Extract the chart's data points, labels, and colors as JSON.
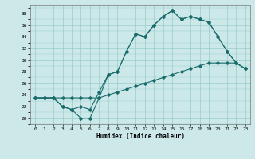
{
  "xlabel": "Humidex (Indice chaleur)",
  "background_color": "#cce8e8",
  "grid_color": "#99cccc",
  "line_color": "#1a6b6b",
  "xlim": [
    -0.5,
    23.5
  ],
  "ylim": [
    19.0,
    39.5
  ],
  "yticks": [
    20,
    22,
    24,
    26,
    28,
    30,
    32,
    34,
    36,
    38
  ],
  "xticks": [
    0,
    1,
    2,
    3,
    4,
    5,
    6,
    7,
    8,
    9,
    10,
    11,
    12,
    13,
    14,
    15,
    16,
    17,
    18,
    19,
    20,
    21,
    22,
    23
  ],
  "line1_x": [
    0,
    1,
    2,
    3,
    4,
    5,
    6,
    7,
    8,
    9,
    10,
    11,
    12,
    13,
    14,
    15,
    16,
    17,
    18,
    19,
    20,
    21,
    22,
    23
  ],
  "line1_y": [
    23.5,
    23.5,
    23.5,
    23.5,
    23.5,
    23.5,
    23.5,
    23.5,
    24.0,
    24.5,
    25.0,
    25.5,
    26.0,
    26.5,
    27.0,
    27.5,
    28.0,
    28.5,
    29.0,
    29.5,
    29.5,
    29.5,
    29.5,
    28.5
  ],
  "line2_x": [
    0,
    1,
    2,
    3,
    4,
    5,
    6,
    7,
    8,
    9,
    10,
    11,
    12,
    13,
    14,
    15,
    16,
    17,
    18,
    19,
    20,
    21,
    22,
    23
  ],
  "line2_y": [
    23.5,
    23.5,
    23.5,
    22.0,
    21.5,
    20.0,
    20.0,
    23.5,
    27.5,
    28.0,
    31.5,
    34.5,
    34.0,
    36.0,
    37.5,
    38.5,
    37.0,
    37.5,
    37.0,
    36.5,
    34.0,
    31.5,
    29.5,
    28.5
  ],
  "line3_x": [
    0,
    1,
    2,
    3,
    4,
    5,
    6,
    7,
    8,
    9,
    10,
    11,
    12,
    13,
    14,
    15,
    16,
    17,
    18,
    19,
    20,
    21,
    22,
    23
  ],
  "line3_y": [
    23.5,
    23.5,
    23.5,
    22.0,
    21.5,
    22.0,
    21.5,
    24.5,
    27.5,
    28.0,
    31.5,
    34.5,
    34.0,
    36.0,
    37.5,
    38.5,
    37.0,
    37.5,
    37.0,
    36.5,
    34.0,
    31.5,
    29.5,
    28.5
  ],
  "xlabel_fontsize": 5.5,
  "tick_fontsize": 4.5
}
